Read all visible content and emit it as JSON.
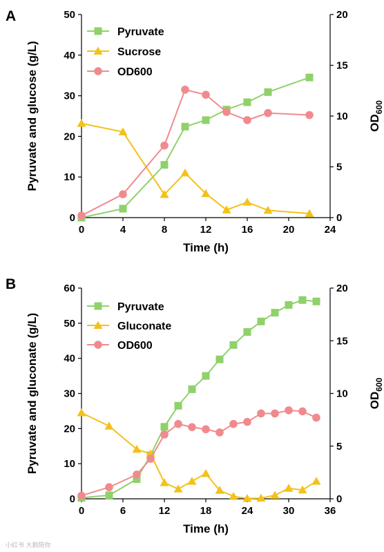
{
  "watermark": "小红书 大鹅陪你",
  "colors": {
    "pyruvate": "#8fd16a",
    "sucrose": "#f2c21b",
    "gluconate": "#f2c21b",
    "od600": "#f08a8e",
    "axis": "#000000"
  },
  "chart_data": [
    {
      "panel": "A",
      "type": "line",
      "xlabel": "Time (h)",
      "ylabel_left": "Pyruvate and glucose (g/L)",
      "ylabel_right_main": "OD",
      "ylabel_right_sub": "600",
      "xlim": [
        0,
        24
      ],
      "xticks": [
        0,
        4,
        8,
        12,
        16,
        20,
        24
      ],
      "ylim_left": [
        0,
        50
      ],
      "yticks_left": [
        0,
        10,
        20,
        30,
        40,
        50
      ],
      "ylim_right": [
        0,
        20
      ],
      "yticks_right": [
        0,
        5,
        10,
        15,
        20
      ],
      "legend": "top-left",
      "series": [
        {
          "name": "Pyruvate",
          "axis": "left",
          "marker": "square",
          "color": "#8fd16a",
          "x": [
            0,
            4,
            8,
            10,
            12,
            14,
            16,
            18,
            22
          ],
          "y": [
            0,
            2.2,
            13,
            22.4,
            24,
            26.6,
            28.4,
            30.9,
            34.5
          ]
        },
        {
          "name": "Sucrose",
          "axis": "left",
          "marker": "triangle",
          "color": "#f2c21b",
          "x": [
            0,
            4,
            8,
            10,
            12,
            14,
            16,
            18,
            22
          ],
          "y": [
            23.2,
            21.1,
            5.7,
            11,
            5.9,
            1.9,
            3.8,
            1.8,
            1
          ]
        },
        {
          "name": "OD600",
          "axis": "right",
          "marker": "circle",
          "color": "#f08a8e",
          "x": [
            0,
            4,
            8,
            10,
            12,
            14,
            16,
            18,
            22
          ],
          "y": [
            0.2,
            2.3,
            7.1,
            12.6,
            12.1,
            10.4,
            9.6,
            10.3,
            10.1
          ]
        }
      ]
    },
    {
      "panel": "B",
      "type": "line",
      "xlabel": "Time (h)",
      "ylabel_left": "Pyruvate and gluconate (g/L)",
      "ylabel_right_main": "OD",
      "ylabel_right_sub": "600",
      "xlim": [
        0,
        36
      ],
      "xticks": [
        0,
        6,
        12,
        18,
        24,
        30,
        36
      ],
      "ylim_left": [
        0,
        60
      ],
      "yticks_left": [
        0,
        10,
        20,
        30,
        40,
        50,
        60
      ],
      "ylim_right": [
        0,
        20
      ],
      "yticks_right": [
        0,
        5,
        10,
        15,
        20
      ],
      "legend": "top-left",
      "series": [
        {
          "name": "Pyruvate",
          "axis": "left",
          "marker": "square",
          "color": "#8fd16a",
          "x": [
            0,
            4,
            8,
            10,
            12,
            14,
            16,
            18,
            20,
            22,
            24,
            26,
            28,
            30,
            32,
            34
          ],
          "y": [
            0.3,
            1,
            5.6,
            12.4,
            20.5,
            26.5,
            31.2,
            35,
            39.7,
            43.8,
            47.5,
            50.5,
            53,
            55.2,
            56.6,
            56.2
          ]
        },
        {
          "name": "Gluconate",
          "axis": "left",
          "marker": "triangle",
          "color": "#f2c21b",
          "x": [
            0,
            4,
            8,
            10,
            12,
            14,
            16,
            18,
            20,
            22,
            24,
            26,
            28,
            30,
            32,
            34
          ],
          "y": [
            24.5,
            20.7,
            14.1,
            12.8,
            4.6,
            2.8,
            5,
            7.2,
            2.4,
            0.7,
            0.1,
            0.2,
            1,
            3,
            2.5,
            5
          ]
        },
        {
          "name": "OD600",
          "axis": "right",
          "marker": "circle",
          "color": "#f08a8e",
          "x": [
            0,
            4,
            8,
            10,
            12,
            14,
            16,
            18,
            20,
            22,
            24,
            26,
            28,
            30,
            32,
            34
          ],
          "y": [
            0.3,
            1.1,
            2.3,
            3.8,
            6.1,
            7.1,
            6.8,
            6.6,
            6.3,
            7.1,
            7.3,
            8.1,
            8.1,
            8.4,
            8.3,
            7.7
          ]
        }
      ]
    }
  ]
}
